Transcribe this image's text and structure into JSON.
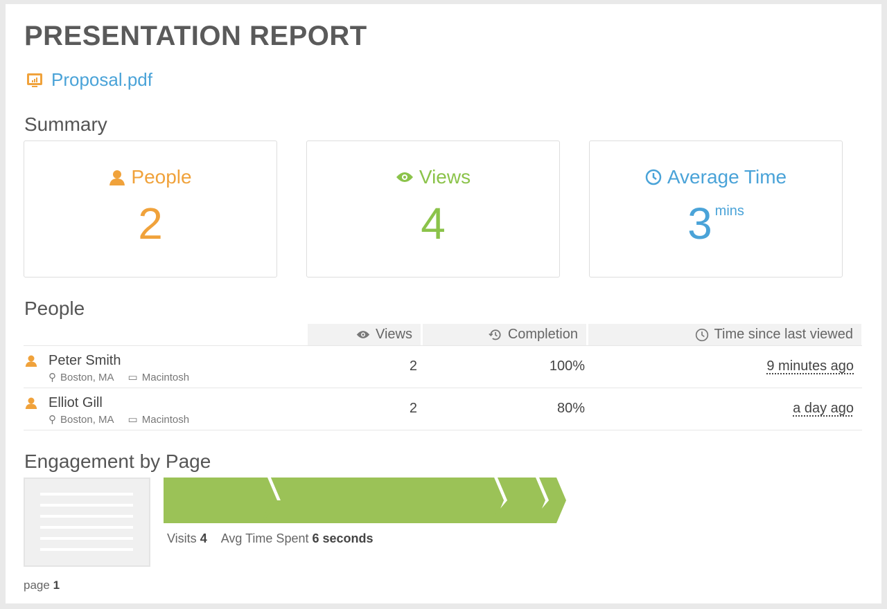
{
  "title": "PRESENTATION REPORT",
  "file": {
    "name": "Proposal.pdf",
    "icon": "presentation-chart-icon"
  },
  "summary": {
    "heading": "Summary",
    "cards": [
      {
        "label": "People",
        "value": "2",
        "unit": "",
        "color": "#f0a23b",
        "icon": "person-icon"
      },
      {
        "label": "Views",
        "value": "4",
        "unit": "",
        "color": "#8bc34a",
        "icon": "eye-icon"
      },
      {
        "label": "Average Time",
        "value": "3",
        "unit": "mins",
        "color": "#4aa3d8",
        "icon": "clock-icon"
      }
    ]
  },
  "people": {
    "heading": "People",
    "columns": {
      "views": "Views",
      "completion": "Completion",
      "last": "Time since last viewed"
    },
    "rows": [
      {
        "name": "Peter Smith",
        "location": "Boston, MA",
        "device": "Macintosh",
        "views": "2",
        "completion": "100%",
        "last": "9 minutes ago"
      },
      {
        "name": "Elliot Gill",
        "location": "Boston, MA",
        "device": "Macintosh",
        "views": "2",
        "completion": "80%",
        "last": "a day ago"
      }
    ]
  },
  "engagement": {
    "heading": "Engagement by Page",
    "visits_label": "Visits",
    "visits": "4",
    "avg_label": "Avg Time Spent",
    "avg": "6 seconds",
    "page_label": "page",
    "page": "1",
    "bar_color": "#9bc257"
  }
}
